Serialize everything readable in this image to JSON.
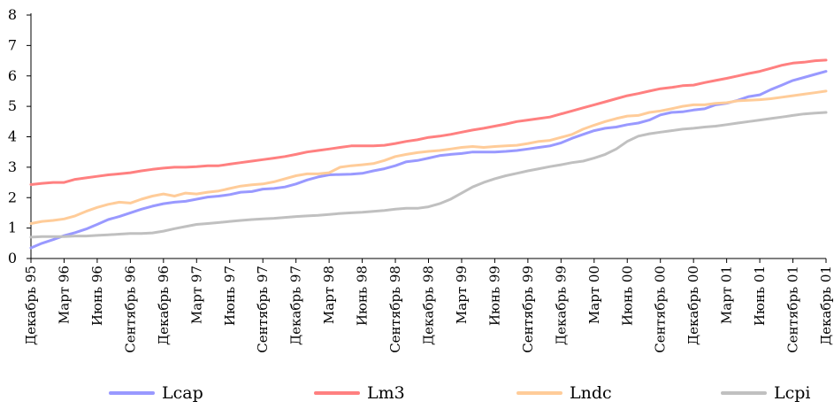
{
  "chart_data": {
    "type": "line",
    "title": "",
    "xlabel": "",
    "ylabel": "",
    "ylim": [
      0,
      8
    ],
    "yticks": [
      "0",
      "1",
      "2",
      "3",
      "4",
      "5",
      "6",
      "7",
      "8"
    ],
    "grid": false,
    "legend_position": "bottom",
    "x_tick_labels": [
      "Декабрь 95",
      "Март 96",
      "Июнь 96",
      "Сентябрь 96",
      "Декабрь 96",
      "Март 97",
      "Июнь 97",
      "Сентябрь 97",
      "Декабрь 97",
      "Март 98",
      "Июнь 98",
      "Сентябрь 98",
      "Декабрь 98",
      "Март 99",
      "Июнь 99",
      "Сентябрь 99",
      "Декабрь 99",
      "Март 00",
      "Июнь 00",
      "Сентябрь 00",
      "Декабрь 00",
      "Март 01",
      "Июнь 01",
      "Сентябрь 01",
      "Декабрь 01"
    ],
    "x": [
      "1995-12",
      "1996-01",
      "1996-02",
      "1996-03",
      "1996-04",
      "1996-05",
      "1996-06",
      "1996-07",
      "1996-08",
      "1996-09",
      "1996-10",
      "1996-11",
      "1996-12",
      "1997-01",
      "1997-02",
      "1997-03",
      "1997-04",
      "1997-05",
      "1997-06",
      "1997-07",
      "1997-08",
      "1997-09",
      "1997-10",
      "1997-11",
      "1997-12",
      "1998-01",
      "1998-02",
      "1998-03",
      "1998-04",
      "1998-05",
      "1998-06",
      "1998-07",
      "1998-08",
      "1998-09",
      "1998-10",
      "1998-11",
      "1998-12",
      "1999-01",
      "1999-02",
      "1999-03",
      "1999-04",
      "1999-05",
      "1999-06",
      "1999-07",
      "1999-08",
      "1999-09",
      "1999-10",
      "1999-11",
      "1999-12",
      "2000-01",
      "2000-02",
      "2000-03",
      "2000-04",
      "2000-05",
      "2000-06",
      "2000-07",
      "2000-08",
      "2000-09",
      "2000-10",
      "2000-11",
      "2000-12",
      "2001-01",
      "2001-02",
      "2001-03",
      "2001-04",
      "2001-05",
      "2001-06",
      "2001-07",
      "2001-08",
      "2001-09",
      "2001-10",
      "2001-11",
      "2001-12"
    ],
    "series": [
      {
        "name": "Lcap",
        "color": "#9999ff",
        "values": [
          0.35,
          0.5,
          0.62,
          0.75,
          0.85,
          0.97,
          1.12,
          1.28,
          1.38,
          1.5,
          1.62,
          1.72,
          1.8,
          1.85,
          1.88,
          1.95,
          2.02,
          2.05,
          2.1,
          2.18,
          2.2,
          2.28,
          2.3,
          2.35,
          2.45,
          2.58,
          2.68,
          2.75,
          2.76,
          2.77,
          2.8,
          2.88,
          2.95,
          3.05,
          3.18,
          3.22,
          3.3,
          3.38,
          3.42,
          3.45,
          3.5,
          3.5,
          3.5,
          3.52,
          3.55,
          3.6,
          3.65,
          3.7,
          3.8,
          3.95,
          4.08,
          4.2,
          4.28,
          4.32,
          4.4,
          4.45,
          4.55,
          4.72,
          4.8,
          4.82,
          4.88,
          4.92,
          5.05,
          5.1,
          5.2,
          5.32,
          5.38,
          5.55,
          5.7,
          5.85,
          5.95,
          6.05,
          6.15
        ]
      },
      {
        "name": "Lm3",
        "color": "#ff8080",
        "values": [
          2.43,
          2.47,
          2.5,
          2.5,
          2.6,
          2.65,
          2.7,
          2.75,
          2.78,
          2.82,
          2.88,
          2.93,
          2.97,
          3.0,
          3.0,
          3.02,
          3.05,
          3.05,
          3.1,
          3.15,
          3.2,
          3.25,
          3.3,
          3.35,
          3.42,
          3.5,
          3.55,
          3.6,
          3.65,
          3.7,
          3.7,
          3.7,
          3.72,
          3.78,
          3.85,
          3.9,
          3.98,
          4.02,
          4.08,
          4.15,
          4.22,
          4.28,
          4.35,
          4.42,
          4.5,
          4.55,
          4.6,
          4.65,
          4.75,
          4.85,
          4.95,
          5.05,
          5.15,
          5.25,
          5.35,
          5.42,
          5.5,
          5.58,
          5.62,
          5.68,
          5.7,
          5.78,
          5.85,
          5.92,
          6.0,
          6.08,
          6.15,
          6.25,
          6.35,
          6.42,
          6.45,
          6.5,
          6.52
        ]
      },
      {
        "name": "Lndc",
        "color": "#ffcc99",
        "values": [
          1.15,
          1.22,
          1.25,
          1.3,
          1.4,
          1.55,
          1.68,
          1.78,
          1.85,
          1.82,
          1.95,
          2.05,
          2.12,
          2.05,
          2.15,
          2.12,
          2.18,
          2.22,
          2.3,
          2.38,
          2.42,
          2.45,
          2.52,
          2.62,
          2.72,
          2.78,
          2.78,
          2.82,
          3.0,
          3.05,
          3.08,
          3.12,
          3.22,
          3.35,
          3.42,
          3.48,
          3.52,
          3.55,
          3.6,
          3.65,
          3.68,
          3.65,
          3.68,
          3.7,
          3.72,
          3.78,
          3.85,
          3.88,
          3.98,
          4.08,
          4.25,
          4.38,
          4.5,
          4.6,
          4.68,
          4.7,
          4.8,
          4.85,
          4.92,
          5.0,
          5.05,
          5.05,
          5.1,
          5.12,
          5.18,
          5.2,
          5.22,
          5.25,
          5.3,
          5.35,
          5.4,
          5.45,
          5.5
        ]
      },
      {
        "name": "Lcpi",
        "color": "#c0c0c0",
        "values": [
          0.7,
          0.72,
          0.72,
          0.72,
          0.74,
          0.74,
          0.76,
          0.78,
          0.8,
          0.82,
          0.82,
          0.84,
          0.9,
          0.98,
          1.05,
          1.12,
          1.15,
          1.18,
          1.22,
          1.25,
          1.28,
          1.3,
          1.32,
          1.35,
          1.38,
          1.4,
          1.42,
          1.45,
          1.48,
          1.5,
          1.52,
          1.55,
          1.58,
          1.62,
          1.65,
          1.65,
          1.7,
          1.8,
          1.95,
          2.15,
          2.35,
          2.5,
          2.62,
          2.72,
          2.8,
          2.88,
          2.95,
          3.02,
          3.08,
          3.15,
          3.2,
          3.3,
          3.42,
          3.6,
          3.85,
          4.02,
          4.1,
          4.15,
          4.2,
          4.25,
          4.28,
          4.32,
          4.35,
          4.4,
          4.45,
          4.5,
          4.55,
          4.6,
          4.65,
          4.7,
          4.75,
          4.78,
          4.8
        ]
      }
    ]
  }
}
